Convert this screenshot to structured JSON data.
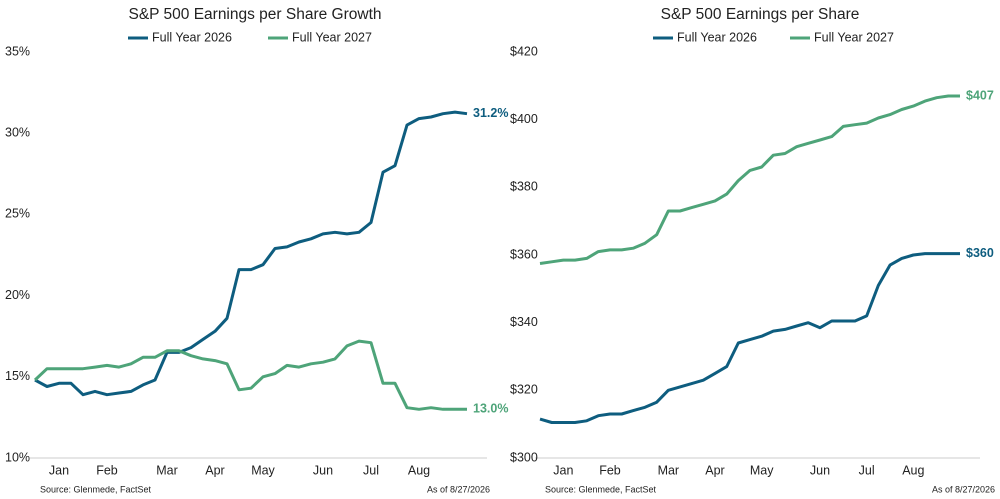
{
  "chart_data": [
    {
      "type": "line",
      "title": "S&P 500 Earnings per Share Growth",
      "categories": [
        null,
        null,
        "Jan",
        null,
        null,
        null,
        "Feb",
        null,
        null,
        null,
        null,
        "Mar",
        null,
        null,
        null,
        "Apr",
        null,
        null,
        null,
        "May",
        null,
        null,
        null,
        null,
        "Jun",
        null,
        null,
        null,
        "Jul",
        null,
        null,
        null,
        "Aug",
        null,
        null,
        null,
        null
      ],
      "series": [
        {
          "name": "Full Year 2026",
          "color": "#0e5d7f",
          "values": [
            14.8,
            14.4,
            14.6,
            14.6,
            13.9,
            14.1,
            13.9,
            14.0,
            14.1,
            14.5,
            14.8,
            16.5,
            16.5,
            16.8,
            17.3,
            17.8,
            18.6,
            21.6,
            21.6,
            21.9,
            22.9,
            23.0,
            23.3,
            23.5,
            23.8,
            23.9,
            23.8,
            23.9,
            24.5,
            27.6,
            28.0,
            30.5,
            30.9,
            31.0,
            31.2,
            31.3,
            31.2
          ],
          "value_labels": [
            null,
            null,
            null,
            null,
            null,
            null,
            null,
            null,
            null,
            null,
            null,
            null,
            null,
            null,
            null,
            null,
            null,
            null,
            null,
            null,
            null,
            null,
            null,
            null,
            null,
            null,
            null,
            null,
            null,
            null,
            null,
            null,
            null,
            null,
            null,
            null,
            "31.2%"
          ]
        },
        {
          "name": "Full Year 2027",
          "color": "#4ea479",
          "values": [
            14.8,
            15.5,
            15.5,
            15.5,
            15.5,
            15.6,
            15.7,
            15.6,
            15.8,
            16.2,
            16.2,
            16.6,
            16.6,
            16.3,
            16.1,
            16.0,
            15.8,
            14.2,
            14.3,
            15.0,
            15.2,
            15.7,
            15.6,
            15.8,
            15.9,
            16.1,
            16.9,
            17.2,
            17.1,
            14.6,
            14.6,
            13.1,
            13.0,
            13.1,
            13.0,
            13.0,
            13.0
          ],
          "value_labels": [
            null,
            null,
            null,
            null,
            null,
            null,
            null,
            null,
            null,
            null,
            null,
            null,
            null,
            null,
            null,
            null,
            null,
            null,
            null,
            null,
            null,
            null,
            null,
            null,
            null,
            null,
            null,
            null,
            null,
            null,
            null,
            null,
            null,
            null,
            null,
            null,
            "13.0%"
          ]
        }
      ],
      "ylim": [
        10,
        35
      ],
      "yticks": [
        {
          "value": 10,
          "label": "10%"
        },
        {
          "value": 15,
          "label": "15%"
        },
        {
          "value": 20,
          "label": "20%"
        },
        {
          "value": 25,
          "label": "25%"
        },
        {
          "value": 30,
          "label": "30%"
        },
        {
          "value": 35,
          "label": "35%"
        }
      ],
      "grid": false,
      "source": "Source: Glenmede, FactSet",
      "note": "As of 8/27/2026"
    },
    {
      "type": "line",
      "title": "S&P 500 Earnings per Share",
      "categories": [
        null,
        null,
        "Jan",
        null,
        null,
        null,
        "Feb",
        null,
        null,
        null,
        null,
        "Mar",
        null,
        null,
        null,
        "Apr",
        null,
        null,
        null,
        "May",
        null,
        null,
        null,
        null,
        "Jun",
        null,
        null,
        null,
        "Jul",
        null,
        null,
        null,
        "Aug",
        null,
        null,
        null,
        null
      ],
      "series": [
        {
          "name": "Full Year 2026",
          "color": "#0e5d7f",
          "values": [
            311.5,
            310.5,
            310.5,
            310.5,
            311,
            312.5,
            313,
            313,
            314,
            315,
            316.5,
            320,
            321,
            322,
            323,
            325,
            327,
            334,
            335,
            336,
            337.5,
            338,
            339,
            340,
            338.5,
            340.5,
            340.5,
            340.5,
            342,
            351,
            357,
            359,
            360,
            360.4,
            360.4,
            360.4,
            360.4
          ],
          "value_labels": [
            null,
            null,
            null,
            null,
            null,
            null,
            null,
            null,
            null,
            null,
            null,
            null,
            null,
            null,
            null,
            null,
            null,
            null,
            null,
            null,
            null,
            null,
            null,
            null,
            null,
            null,
            null,
            null,
            null,
            null,
            null,
            null,
            null,
            null,
            null,
            null,
            "$360"
          ]
        },
        {
          "name": "Full Year 2027",
          "color": "#4ea479",
          "values": [
            357.5,
            358,
            358.5,
            358.5,
            359,
            361,
            361.5,
            361.5,
            362,
            363.5,
            366,
            373,
            373,
            374,
            375,
            376,
            378,
            382,
            385,
            386,
            389.5,
            390,
            392,
            393,
            394,
            395,
            398,
            398.5,
            399,
            400.5,
            401.5,
            403,
            404,
            405.5,
            406.5,
            407,
            407
          ],
          "value_labels": [
            null,
            null,
            null,
            null,
            null,
            null,
            null,
            null,
            null,
            null,
            null,
            null,
            null,
            null,
            null,
            null,
            null,
            null,
            null,
            null,
            null,
            null,
            null,
            null,
            null,
            null,
            null,
            null,
            null,
            null,
            null,
            null,
            null,
            null,
            null,
            null,
            "$407"
          ]
        }
      ],
      "ylim": [
        300,
        420
      ],
      "yticks": [
        {
          "value": 300,
          "label": "$300"
        },
        {
          "value": 320,
          "label": "$320"
        },
        {
          "value": 340,
          "label": "$340"
        },
        {
          "value": 360,
          "label": "$360"
        },
        {
          "value": 380,
          "label": "$380"
        },
        {
          "value": 400,
          "label": "$400"
        },
        {
          "value": 420,
          "label": "$420"
        }
      ],
      "grid": false,
      "source": "Source: Glenmede, FactSet",
      "note": "As of 8/27/2026"
    }
  ]
}
